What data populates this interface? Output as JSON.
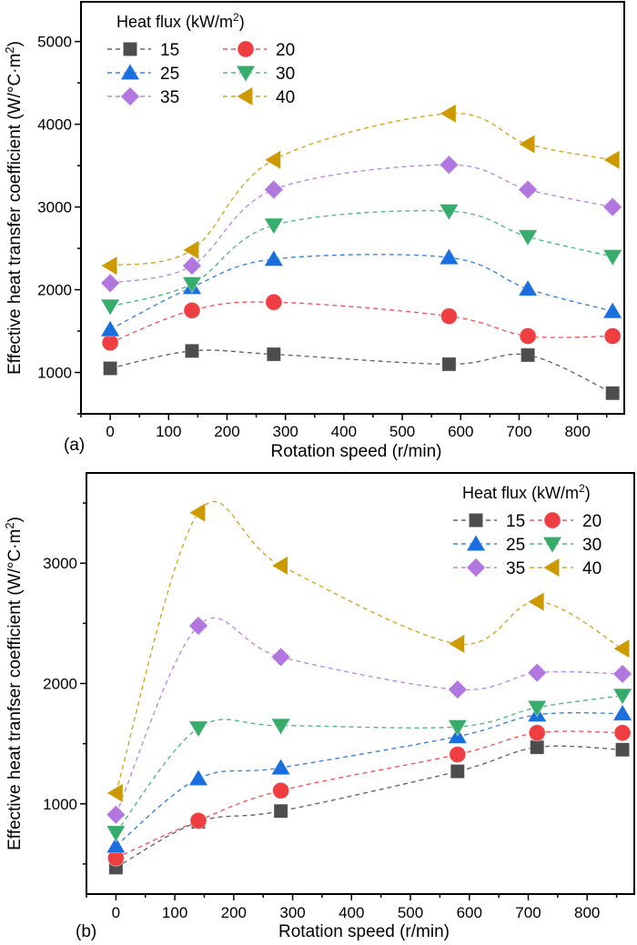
{
  "chart_data": [
    {
      "type": "scatter",
      "panel_label": "(a)",
      "title": "",
      "xlabel": "Rotation speed (r/min)",
      "ylabel": "Effective heat transfer coefficient (W/°C·m²)",
      "xlim": [
        -50,
        880
      ],
      "ylim": [
        500,
        5480
      ],
      "xticks": [
        0,
        100,
        200,
        300,
        400,
        500,
        600,
        700,
        800
      ],
      "yticks": [
        1000,
        2000,
        3000,
        4000,
        5000
      ],
      "grid": false,
      "legend": {
        "title": "Heat flux (kW/m²)",
        "placement": "top-left",
        "columns": 2
      },
      "x": [
        0,
        140,
        280,
        580,
        715,
        860
      ],
      "series": [
        {
          "name": "15",
          "marker": "square",
          "color": "#4d4d4d",
          "values": [
            1050,
            1260,
            1220,
            1100,
            1210,
            750
          ]
        },
        {
          "name": "20",
          "marker": "circle",
          "color": "#ef3e42",
          "values": [
            1360,
            1750,
            1850,
            1680,
            1440,
            1440
          ]
        },
        {
          "name": "25",
          "marker": "triangle-up",
          "color": "#1a6fdf",
          "values": [
            1520,
            2030,
            2370,
            2390,
            2010,
            1740
          ]
        },
        {
          "name": "30",
          "marker": "triangle-down",
          "color": "#37ad6b",
          "values": [
            1800,
            2070,
            2780,
            2950,
            2640,
            2400
          ]
        },
        {
          "name": "35",
          "marker": "diamond",
          "color": "#b177de",
          "values": [
            2080,
            2290,
            3210,
            3510,
            3210,
            3000
          ]
        },
        {
          "name": "40",
          "marker": "triangle-left",
          "color": "#cc9900",
          "values": [
            2290,
            2480,
            3570,
            4130,
            3760,
            3570
          ]
        }
      ]
    },
    {
      "type": "scatter",
      "panel_label": "(b)",
      "title": "",
      "xlabel": "Rotation speed (r/min)",
      "ylabel": "Effective heat tranfser coefficient (W/°C·m²)",
      "xlim": [
        -50,
        880
      ],
      "ylim": [
        250,
        3750
      ],
      "xticks": [
        0,
        100,
        200,
        300,
        400,
        500,
        600,
        700,
        800
      ],
      "yticks": [
        1000,
        2000,
        3000
      ],
      "grid": false,
      "legend": {
        "title": "Heat flux (kW/m²)",
        "placement": "top-right",
        "columns": 2
      },
      "x": [
        0,
        140,
        280,
        580,
        715,
        860
      ],
      "series": [
        {
          "name": "15",
          "marker": "square",
          "color": "#4d4d4d",
          "values": [
            470,
            850,
            940,
            1270,
            1470,
            1450
          ]
        },
        {
          "name": "20",
          "marker": "circle",
          "color": "#ef3e42",
          "values": [
            550,
            860,
            1110,
            1410,
            1590,
            1590
          ]
        },
        {
          "name": "25",
          "marker": "triangle-up",
          "color": "#1a6fdf",
          "values": [
            650,
            1210,
            1300,
            1560,
            1740,
            1750
          ]
        },
        {
          "name": "30",
          "marker": "triangle-down",
          "color": "#37ad6b",
          "values": [
            760,
            1630,
            1650,
            1640,
            1800,
            1900
          ]
        },
        {
          "name": "35",
          "marker": "diamond",
          "color": "#b177de",
          "values": [
            910,
            2480,
            2220,
            1950,
            2090,
            2080
          ]
        },
        {
          "name": "40",
          "marker": "triangle-left",
          "color": "#cc9900",
          "values": [
            1090,
            3420,
            2980,
            2330,
            2680,
            2290
          ]
        }
      ]
    }
  ]
}
